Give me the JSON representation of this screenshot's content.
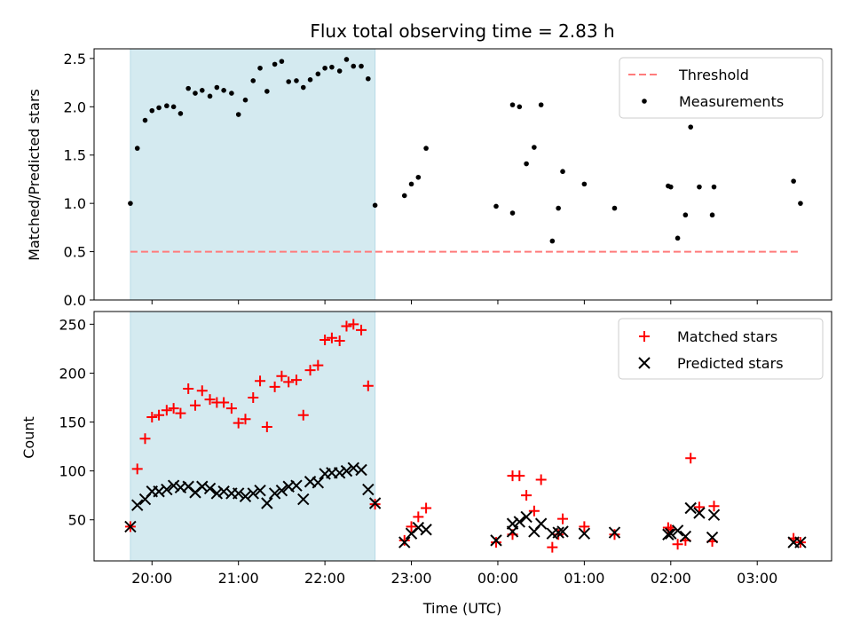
{
  "chart_data": [
    {
      "type": "scatter",
      "title": "Flux total observing time = 2.83 h",
      "xlabel": "",
      "ylabel": "Matched/Predicted stars",
      "ylim": [
        0,
        2.6
      ],
      "yticks": [
        0.0,
        0.5,
        1.0,
        1.5,
        2.0,
        2.5
      ],
      "ytick_labels": [
        "0.0",
        "0.5",
        "1.0",
        "1.5",
        "2.0",
        "2.5"
      ],
      "xlim_hours": [
        19.33,
        27.86
      ],
      "shaded_span_hours": [
        19.75,
        22.58
      ],
      "shaded_color": "#d4eaf0",
      "legend_position": "upper right",
      "threshold": {
        "name": "Threshold",
        "value": 0.5,
        "x_range_hours": [
          19.75,
          27.5
        ],
        "color": "#ff7b7b"
      },
      "series": [
        {
          "name": "Measurements",
          "color": "#000000",
          "marker": "dot",
          "points": [
            [
              19.75,
              1.0
            ],
            [
              19.83,
              1.57
            ],
            [
              19.92,
              1.86
            ],
            [
              20.0,
              1.96
            ],
            [
              20.08,
              1.99
            ],
            [
              20.17,
              2.01
            ],
            [
              20.25,
              2.0
            ],
            [
              20.33,
              1.93
            ],
            [
              20.42,
              2.19
            ],
            [
              20.5,
              2.14
            ],
            [
              20.58,
              2.17
            ],
            [
              20.67,
              2.11
            ],
            [
              20.75,
              2.2
            ],
            [
              20.83,
              2.17
            ],
            [
              20.92,
              2.14
            ],
            [
              21.0,
              1.92
            ],
            [
              21.08,
              2.07
            ],
            [
              21.17,
              2.27
            ],
            [
              21.25,
              2.4
            ],
            [
              21.33,
              2.16
            ],
            [
              21.42,
              2.44
            ],
            [
              21.5,
              2.47
            ],
            [
              21.58,
              2.26
            ],
            [
              21.67,
              2.27
            ],
            [
              21.75,
              2.2
            ],
            [
              21.83,
              2.28
            ],
            [
              21.92,
              2.34
            ],
            [
              22.0,
              2.4
            ],
            [
              22.08,
              2.41
            ],
            [
              22.17,
              2.37
            ],
            [
              22.25,
              2.49
            ],
            [
              22.33,
              2.42
            ],
            [
              22.42,
              2.42
            ],
            [
              22.5,
              2.29
            ],
            [
              22.58,
              0.98
            ],
            [
              22.92,
              1.08
            ],
            [
              23.0,
              1.2
            ],
            [
              23.08,
              1.27
            ],
            [
              23.17,
              1.57
            ],
            [
              23.98,
              0.97
            ],
            [
              24.17,
              0.9
            ],
            [
              24.17,
              2.02
            ],
            [
              24.25,
              2.0
            ],
            [
              24.33,
              1.41
            ],
            [
              24.42,
              1.58
            ],
            [
              24.5,
              2.02
            ],
            [
              24.63,
              0.61
            ],
            [
              24.7,
              0.95
            ],
            [
              24.75,
              1.33
            ],
            [
              25.0,
              1.2
            ],
            [
              25.35,
              0.95
            ],
            [
              25.97,
              1.18
            ],
            [
              26.0,
              1.17
            ],
            [
              26.08,
              0.64
            ],
            [
              26.17,
              0.88
            ],
            [
              26.23,
              1.79
            ],
            [
              26.33,
              1.17
            ],
            [
              26.48,
              0.88
            ],
            [
              26.5,
              1.17
            ],
            [
              27.42,
              1.23
            ],
            [
              27.5,
              1.0
            ]
          ]
        }
      ]
    },
    {
      "type": "scatter",
      "title": "",
      "xlabel": "Time (UTC)",
      "ylabel": "Count",
      "ylim": [
        8,
        263
      ],
      "yticks": [
        50,
        100,
        150,
        200,
        250
      ],
      "ytick_labels": [
        "50",
        "100",
        "150",
        "200",
        "250"
      ],
      "xticks_hours": [
        20,
        21,
        22,
        23,
        24,
        25,
        26,
        27
      ],
      "xtick_labels": [
        "20:00",
        "21:00",
        "22:00",
        "23:00",
        "00:00",
        "01:00",
        "02:00",
        "03:00"
      ],
      "xlim_hours": [
        19.33,
        27.86
      ],
      "shaded_span_hours": [
        19.75,
        22.58
      ],
      "shaded_color": "#d4eaf0",
      "legend_position": "upper right",
      "series": [
        {
          "name": "Matched stars",
          "color": "#ff0000",
          "marker": "plus",
          "points": [
            [
              19.75,
              43
            ],
            [
              19.83,
              102
            ],
            [
              19.92,
              133
            ],
            [
              20.0,
              155
            ],
            [
              20.08,
              157
            ],
            [
              20.17,
              162
            ],
            [
              20.25,
              164
            ],
            [
              20.33,
              159
            ],
            [
              20.42,
              184
            ],
            [
              20.5,
              167
            ],
            [
              20.58,
              182
            ],
            [
              20.67,
              173
            ],
            [
              20.75,
              170
            ],
            [
              20.83,
              170
            ],
            [
              20.92,
              164
            ],
            [
              21.0,
              149
            ],
            [
              21.08,
              153
            ],
            [
              21.17,
              175
            ],
            [
              21.25,
              192
            ],
            [
              21.33,
              145
            ],
            [
              21.42,
              186
            ],
            [
              21.5,
              197
            ],
            [
              21.58,
              191
            ],
            [
              21.67,
              193
            ],
            [
              21.75,
              157
            ],
            [
              21.83,
              203
            ],
            [
              21.92,
              208
            ],
            [
              22.0,
              234
            ],
            [
              22.08,
              236
            ],
            [
              22.17,
              233
            ],
            [
              22.25,
              248
            ],
            [
              22.33,
              250
            ],
            [
              22.42,
              244
            ],
            [
              22.5,
              187
            ],
            [
              22.58,
              66
            ],
            [
              22.92,
              29
            ],
            [
              23.0,
              43
            ],
            [
              23.08,
              53
            ],
            [
              23.17,
              62
            ],
            [
              23.98,
              27
            ],
            [
              24.17,
              35
            ],
            [
              24.17,
              95
            ],
            [
              24.25,
              95
            ],
            [
              24.33,
              75
            ],
            [
              24.42,
              59
            ],
            [
              24.5,
              91
            ],
            [
              24.63,
              22
            ],
            [
              24.7,
              35
            ],
            [
              24.75,
              51
            ],
            [
              25.0,
              43
            ],
            [
              25.35,
              35
            ],
            [
              25.97,
              42
            ],
            [
              26.0,
              40
            ],
            [
              26.08,
              25
            ],
            [
              26.17,
              29
            ],
            [
              26.23,
              113
            ],
            [
              26.33,
              63
            ],
            [
              26.48,
              28
            ],
            [
              26.5,
              64
            ],
            [
              27.42,
              31
            ],
            [
              27.5,
              27
            ]
          ]
        },
        {
          "name": "Predicted stars",
          "color": "#000000",
          "marker": "x",
          "points": [
            [
              19.75,
              43
            ],
            [
              19.83,
              65
            ],
            [
              19.92,
              71
            ],
            [
              20.0,
              79
            ],
            [
              20.08,
              79
            ],
            [
              20.17,
              81
            ],
            [
              20.25,
              85
            ],
            [
              20.33,
              83
            ],
            [
              20.42,
              84
            ],
            [
              20.5,
              78
            ],
            [
              20.58,
              84
            ],
            [
              20.67,
              82
            ],
            [
              20.75,
              77
            ],
            [
              20.83,
              79
            ],
            [
              20.92,
              77
            ],
            [
              21.0,
              77
            ],
            [
              21.08,
              74
            ],
            [
              21.17,
              77
            ],
            [
              21.25,
              80
            ],
            [
              21.33,
              67
            ],
            [
              21.42,
              77
            ],
            [
              21.5,
              80
            ],
            [
              21.58,
              84
            ],
            [
              21.67,
              85
            ],
            [
              21.75,
              71
            ],
            [
              21.83,
              89
            ],
            [
              21.92,
              88
            ],
            [
              22.0,
              97
            ],
            [
              22.08,
              98
            ],
            [
              22.17,
              98
            ],
            [
              22.25,
              100
            ],
            [
              22.33,
              103
            ],
            [
              22.42,
              101
            ],
            [
              22.5,
              81
            ],
            [
              22.58,
              67
            ],
            [
              22.92,
              27
            ],
            [
              23.0,
              36
            ],
            [
              23.08,
              42
            ],
            [
              23.17,
              40
            ],
            [
              23.98,
              29
            ],
            [
              24.17,
              38
            ],
            [
              24.17,
              46
            ],
            [
              24.25,
              48
            ],
            [
              24.33,
              53
            ],
            [
              24.42,
              38
            ],
            [
              24.5,
              46
            ],
            [
              24.63,
              36
            ],
            [
              24.7,
              37
            ],
            [
              24.75,
              38
            ],
            [
              25.0,
              36
            ],
            [
              25.35,
              37
            ],
            [
              25.97,
              35
            ],
            [
              26.0,
              36
            ],
            [
              26.08,
              39
            ],
            [
              26.17,
              33
            ],
            [
              26.23,
              62
            ],
            [
              26.33,
              57
            ],
            [
              26.48,
              32
            ],
            [
              26.5,
              55
            ],
            [
              27.42,
              27
            ],
            [
              27.5,
              27
            ]
          ]
        }
      ]
    }
  ]
}
